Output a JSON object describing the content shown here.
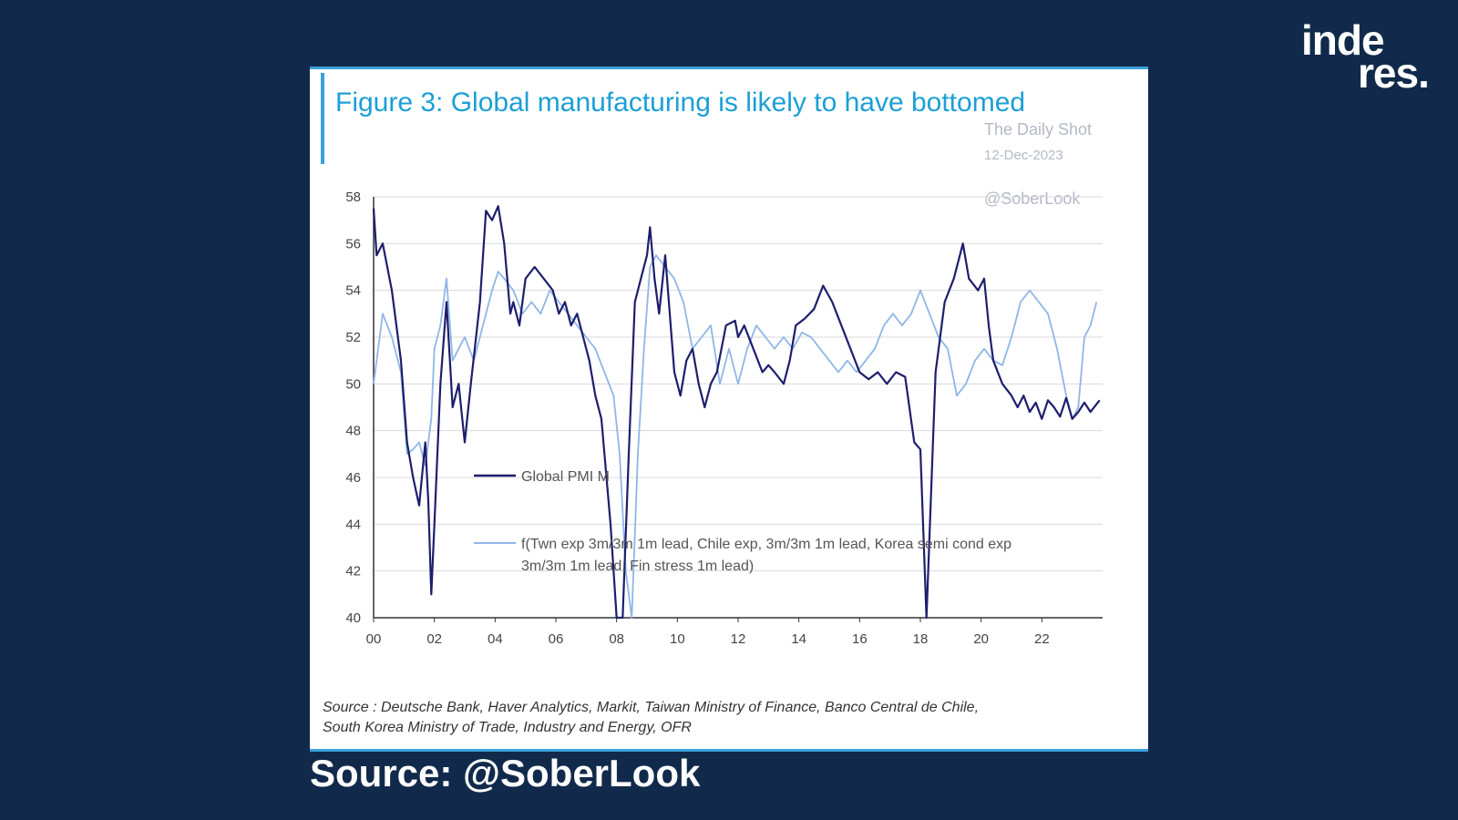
{
  "brand": {
    "logo_line1": "inde",
    "logo_line2": "res."
  },
  "footer": {
    "source": "Source: @SoberLook"
  },
  "card": {
    "watermark": {
      "line1": "The Daily Shot",
      "line2": "12-Dec-2023",
      "handle": "@SoberLook"
    },
    "source_note_line1": "Source : Deutsche Bank, Haver Analytics, Markit, Taiwan Ministry of Finance, Banco Central de Chile,",
    "source_note_line2": "South Korea Ministry of Trade, Industry and Energy, OFR"
  },
  "colors": {
    "background": "#112a4b",
    "accent": "#3aa0dc",
    "title": "#1b9fd6",
    "series1": "#1e1e6e",
    "series2": "#8fb6e6"
  },
  "chart_data": {
    "type": "line",
    "title": "Figure 3: Global manufacturing is likely to have bottomed",
    "xlabel": "",
    "ylabel": "",
    "xlim": [
      0,
      24
    ],
    "ylim": [
      40,
      58
    ],
    "grid": true,
    "legend_position": "center-left",
    "x_tick_labels": [
      "00",
      "02",
      "04",
      "06",
      "08",
      "10",
      "12",
      "14",
      "16",
      "18",
      "20",
      "22"
    ],
    "x_tick_values": [
      0,
      2,
      4,
      6,
      8,
      10,
      12,
      14,
      16,
      18,
      20,
      22
    ],
    "y_ticks": [
      40,
      42,
      44,
      46,
      48,
      50,
      52,
      54,
      56,
      58
    ],
    "series": [
      {
        "name": "Global PMI M",
        "x": [
          0,
          0.1,
          0.3,
          0.6,
          0.9,
          1.1,
          1.3,
          1.5,
          1.7,
          1.8,
          1.9,
          2.0,
          2.2,
          2.4,
          2.6,
          2.8,
          3.0,
          3.2,
          3.5,
          3.7,
          3.9,
          4.1,
          4.3,
          4.5,
          4.6,
          4.8,
          5.0,
          5.3,
          5.6,
          5.9,
          6.1,
          6.3,
          6.5,
          6.7,
          6.9,
          7.1,
          7.3,
          7.5,
          7.8,
          8.0,
          8.2,
          8.4,
          8.6,
          8.8,
          9.0,
          9.1,
          9.25,
          9.4,
          9.6,
          9.9,
          10.1,
          10.3,
          10.5,
          10.7,
          10.9,
          11.1,
          11.3,
          11.6,
          11.9,
          12.0,
          12.2,
          12.5,
          12.8,
          13.0,
          13.2,
          13.5,
          13.7,
          13.9,
          14.2,
          14.5,
          14.8,
          15.1,
          15.4,
          15.7,
          16.0,
          16.3,
          16.6,
          16.9,
          17.2,
          17.5,
          17.8,
          18.0,
          18.2,
          18.5,
          18.8,
          19.1,
          19.4,
          19.6,
          19.9,
          20.1,
          20.25,
          20.4,
          20.7,
          21.0,
          21.2,
          21.4,
          21.6,
          21.8,
          22.0,
          22.2,
          22.4,
          22.6,
          22.8,
          23.0,
          23.2,
          23.4,
          23.6,
          23.9
        ],
        "values": [
          57.5,
          55.5,
          56.0,
          54.0,
          51.0,
          47.5,
          46.0,
          44.8,
          47.5,
          45.0,
          41.0,
          44.0,
          50.0,
          53.5,
          49.0,
          50.0,
          47.5,
          50.0,
          53.5,
          57.4,
          57.0,
          57.6,
          56.0,
          53.0,
          53.5,
          52.5,
          54.5,
          55.0,
          54.5,
          54.0,
          53.0,
          53.5,
          52.5,
          53.0,
          52.0,
          51.0,
          49.5,
          48.5,
          44.0,
          40.0,
          40.0,
          47.0,
          53.5,
          54.5,
          55.5,
          56.7,
          54.5,
          53.0,
          55.5,
          50.5,
          49.5,
          51.0,
          51.5,
          50.0,
          49.0,
          50.0,
          50.5,
          52.5,
          52.7,
          52.0,
          52.5,
          51.5,
          50.5,
          50.8,
          50.5,
          50.0,
          51.0,
          52.5,
          52.8,
          53.2,
          54.2,
          53.5,
          52.5,
          51.5,
          50.5,
          50.2,
          50.5,
          50.0,
          50.5,
          50.3,
          47.5,
          47.2,
          40.0,
          50.5,
          53.5,
          54.5,
          56.0,
          54.5,
          54.0,
          54.5,
          52.5,
          51.0,
          50.0,
          49.5,
          49.0,
          49.5,
          48.8,
          49.2,
          48.5,
          49.3,
          49.0,
          48.6,
          49.4,
          48.5,
          48.8,
          49.2,
          48.8,
          49.3
        ],
        "color": "#1e1e6e"
      },
      {
        "name": "f(Twn exp 3m/3m 1m lead, Chile exp, 3m/3m 1m lead, Korea semi cond exp 3m/3m 1m lead, Fin stress 1m lead)",
        "x": [
          0,
          0.3,
          0.6,
          0.9,
          1.1,
          1.3,
          1.5,
          1.7,
          1.9,
          2.0,
          2.2,
          2.4,
          2.6,
          2.8,
          3.0,
          3.3,
          3.6,
          3.9,
          4.1,
          4.3,
          4.6,
          4.9,
          5.2,
          5.5,
          5.8,
          6.1,
          6.4,
          6.7,
          7.0,
          7.3,
          7.6,
          7.9,
          8.1,
          8.3,
          8.5,
          8.7,
          8.9,
          9.1,
          9.3,
          9.6,
          9.9,
          10.2,
          10.5,
          10.8,
          11.1,
          11.4,
          11.7,
          12.0,
          12.3,
          12.6,
          12.9,
          13.2,
          13.5,
          13.8,
          14.1,
          14.4,
          14.7,
          15.0,
          15.3,
          15.6,
          15.9,
          16.2,
          16.5,
          16.8,
          17.1,
          17.4,
          17.7,
          18.0,
          18.3,
          18.6,
          18.9,
          19.2,
          19.5,
          19.8,
          20.1,
          20.4,
          20.7,
          21.0,
          21.3,
          21.6,
          21.9,
          22.2,
          22.5,
          22.8,
          23.0,
          23.2,
          23.4,
          23.6,
          23.8
        ],
        "values": [
          50.0,
          53.0,
          52.0,
          50.5,
          47.0,
          47.2,
          47.5,
          46.5,
          48.5,
          51.5,
          52.5,
          54.5,
          51.0,
          51.5,
          52.0,
          51.0,
          52.5,
          54.0,
          54.8,
          54.5,
          54.0,
          53.0,
          53.5,
          53.0,
          54.0,
          53.5,
          53.0,
          52.5,
          52.0,
          51.5,
          50.5,
          49.5,
          47.0,
          42.0,
          40.0,
          47.0,
          51.5,
          55.0,
          55.5,
          55.0,
          54.5,
          53.5,
          51.5,
          52.0,
          52.5,
          50.0,
          51.5,
          50.0,
          51.5,
          52.5,
          52.0,
          51.5,
          52.0,
          51.5,
          52.2,
          52.0,
          51.5,
          51.0,
          50.5,
          51.0,
          50.5,
          51.0,
          51.5,
          52.5,
          53.0,
          52.5,
          53.0,
          54.0,
          53.0,
          52.0,
          51.5,
          49.5,
          50.0,
          51.0,
          51.5,
          51.0,
          50.8,
          52.0,
          53.5,
          54.0,
          53.5,
          53.0,
          51.5,
          49.5,
          48.5,
          49.0,
          52.0,
          52.5,
          53.5
        ],
        "color": "#8fb6e6"
      }
    ],
    "legend": [
      {
        "label_line1": "Global PMI M"
      },
      {
        "label_line1": "f(Twn exp 3m/3m 1m lead, Chile exp, 3m/3m 1m lead, Korea semi cond exp",
        "label_line2": "3m/3m 1m lead, Fin stress 1m lead)"
      }
    ]
  }
}
